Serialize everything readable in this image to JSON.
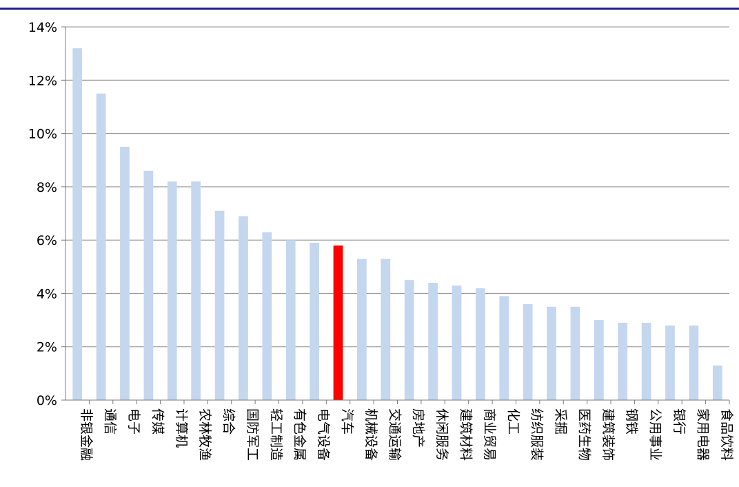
{
  "chart_data": {
    "type": "bar",
    "title": "",
    "xlabel": "",
    "ylabel": "",
    "ylim": [
      0,
      14
    ],
    "yticks": [
      0,
      2,
      4,
      6,
      8,
      10,
      12,
      14
    ],
    "ytick_labels": [
      "0%",
      "2%",
      "4%",
      "6%",
      "8%",
      "10%",
      "12%",
      "14%"
    ],
    "grid": true,
    "legend": "none",
    "categories": [
      "非银金融",
      "通信",
      "电子",
      "传媒",
      "计算机",
      "农林牧渔",
      "综合",
      "国防军工",
      "轻工制造",
      "有色金属",
      "电气设备",
      "汽车",
      "机械设备",
      "交通运输",
      "房地产",
      "休闲服务",
      "建筑材料",
      "商业贸易",
      "化工",
      "纺织服装",
      "采掘",
      "医药生物",
      "建筑装饰",
      "钢铁",
      "公用事业",
      "银行",
      "家用电器",
      "食品饮料"
    ],
    "values": [
      13.2,
      11.5,
      9.5,
      8.6,
      8.2,
      8.2,
      7.1,
      6.9,
      6.3,
      6.0,
      5.9,
      5.8,
      5.3,
      5.3,
      4.5,
      4.4,
      4.3,
      4.2,
      3.9,
      3.6,
      3.5,
      3.5,
      3.0,
      2.9,
      2.9,
      2.8,
      2.8,
      1.3
    ],
    "bar_color": "#c5d7ef",
    "highlight_category": "汽车",
    "highlight_color": "#ff0000"
  },
  "colors": {
    "header_rule": "#1f1f8f"
  }
}
